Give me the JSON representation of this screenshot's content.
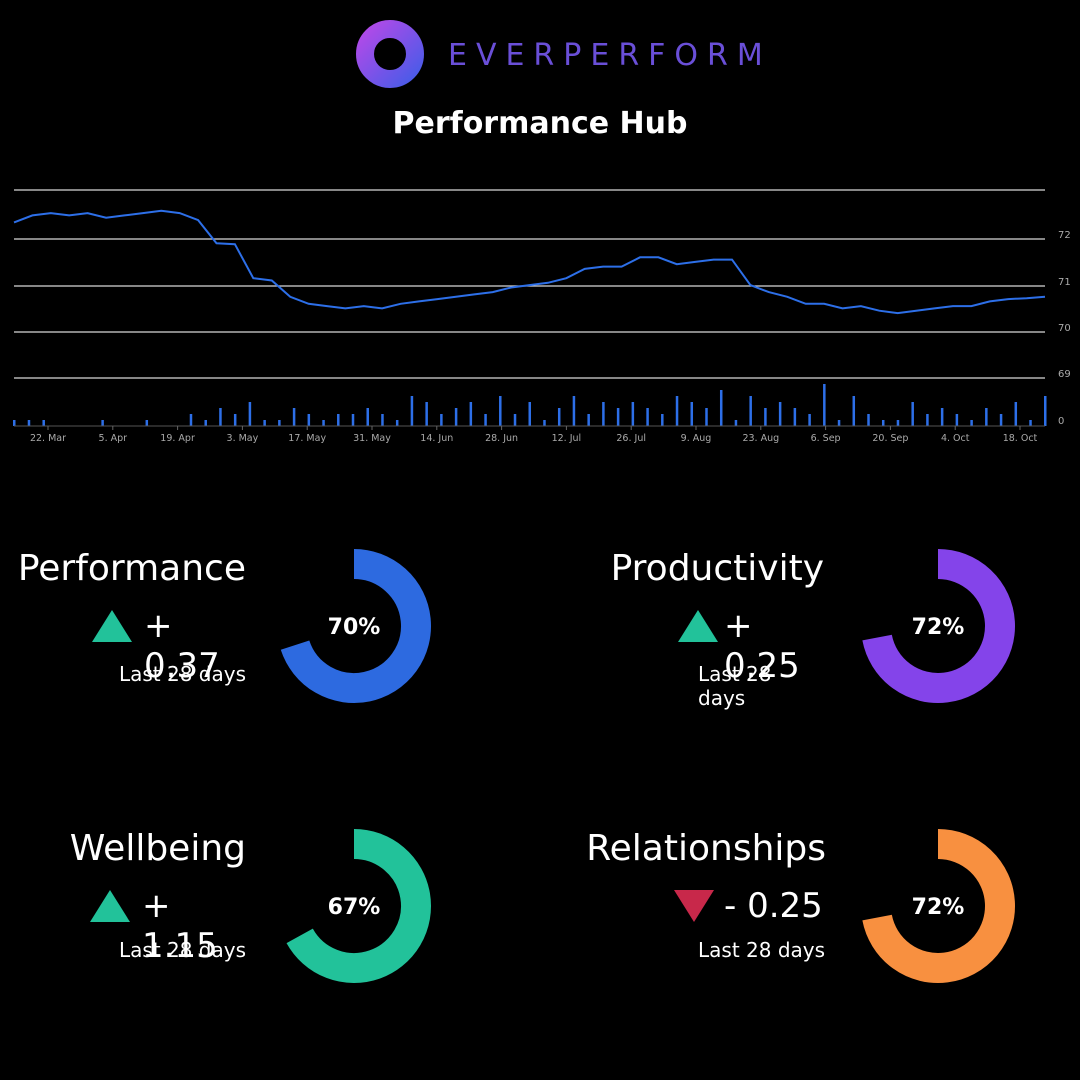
{
  "brand": {
    "name": "EVERPERFORM",
    "ring_color": "#6a4fd8"
  },
  "title": "Performance Hub",
  "chart_data": {
    "type": "line",
    "y_ticks": [
      "72",
      "71",
      "70",
      "69",
      "0"
    ],
    "x_ticks": [
      "22. Mar",
      "5. Apr",
      "19. Apr",
      "3. May",
      "17. May",
      "31. May",
      "14. Jun",
      "28. Jun",
      "12. Jul",
      "26. Jul",
      "9. Aug",
      "23. Aug",
      "6. Sep",
      "20. Sep",
      "4. Oct",
      "18. Oct"
    ],
    "series": [
      {
        "type": "line",
        "color": "#2d6fe8",
        "values": [
          72.25,
          72.4,
          72.45,
          72.4,
          72.45,
          72.35,
          72.4,
          72.45,
          72.5,
          72.45,
          72.3,
          71.8,
          71.78,
          71.05,
          71.0,
          70.65,
          70.5,
          70.45,
          70.4,
          70.45,
          70.4,
          70.5,
          70.55,
          70.6,
          70.65,
          70.7,
          70.75,
          70.85,
          70.9,
          70.95,
          71.05,
          71.25,
          71.3,
          71.3,
          71.5,
          71.5,
          71.35,
          71.4,
          71.45,
          71.45,
          70.9,
          70.75,
          70.65,
          70.5,
          70.5,
          70.4,
          70.45,
          70.35,
          70.3,
          70.35,
          70.4,
          70.45,
          70.45,
          70.55,
          70.6,
          70.62,
          70.65
        ]
      }
    ],
    "bars": [
      1,
      1,
      1,
      0,
      0,
      0,
      1,
      0,
      0,
      1,
      0,
      0,
      2,
      1,
      3,
      2,
      4,
      1,
      1,
      3,
      2,
      1,
      2,
      2,
      3,
      2,
      1,
      5,
      4,
      2,
      3,
      4,
      2,
      5,
      2,
      4,
      1,
      3,
      5,
      2,
      4,
      3,
      4,
      3,
      2,
      5,
      4,
      3,
      6,
      1,
      5,
      3,
      4,
      3,
      2,
      7,
      1,
      5,
      2,
      1,
      1,
      4,
      2,
      3,
      2,
      1,
      3,
      2,
      4,
      1,
      5
    ]
  },
  "metrics": [
    {
      "name": "Performance",
      "sign": "+",
      "delta": "+ 0.37",
      "direction": "up",
      "period": "Last 28 days",
      "percent": "70%",
      "fraction": 0.7,
      "color": "#2d6ae0"
    },
    {
      "name": "Productivity",
      "sign": "+",
      "delta": "+ 0.25",
      "direction": "up",
      "period": "Last 28 days",
      "percent": "72%",
      "fraction": 0.72,
      "color": "#8444ea"
    },
    {
      "name": "Wellbeing",
      "sign": "+",
      "delta": "+ 1.15",
      "direction": "up",
      "period": "Last 28 days",
      "percent": "67%",
      "fraction": 0.67,
      "color": "#22c29a"
    },
    {
      "name": "Relationships",
      "sign": "-",
      "delta": "- 0.25",
      "direction": "down",
      "period": "Last 28 days",
      "percent": "72%",
      "fraction": 0.72,
      "color": "#f89040"
    }
  ],
  "colors": {
    "up": "#22c29a",
    "down": "#c8284a",
    "grid": "#d8d8d8",
    "tick": "#aaaaaa"
  }
}
